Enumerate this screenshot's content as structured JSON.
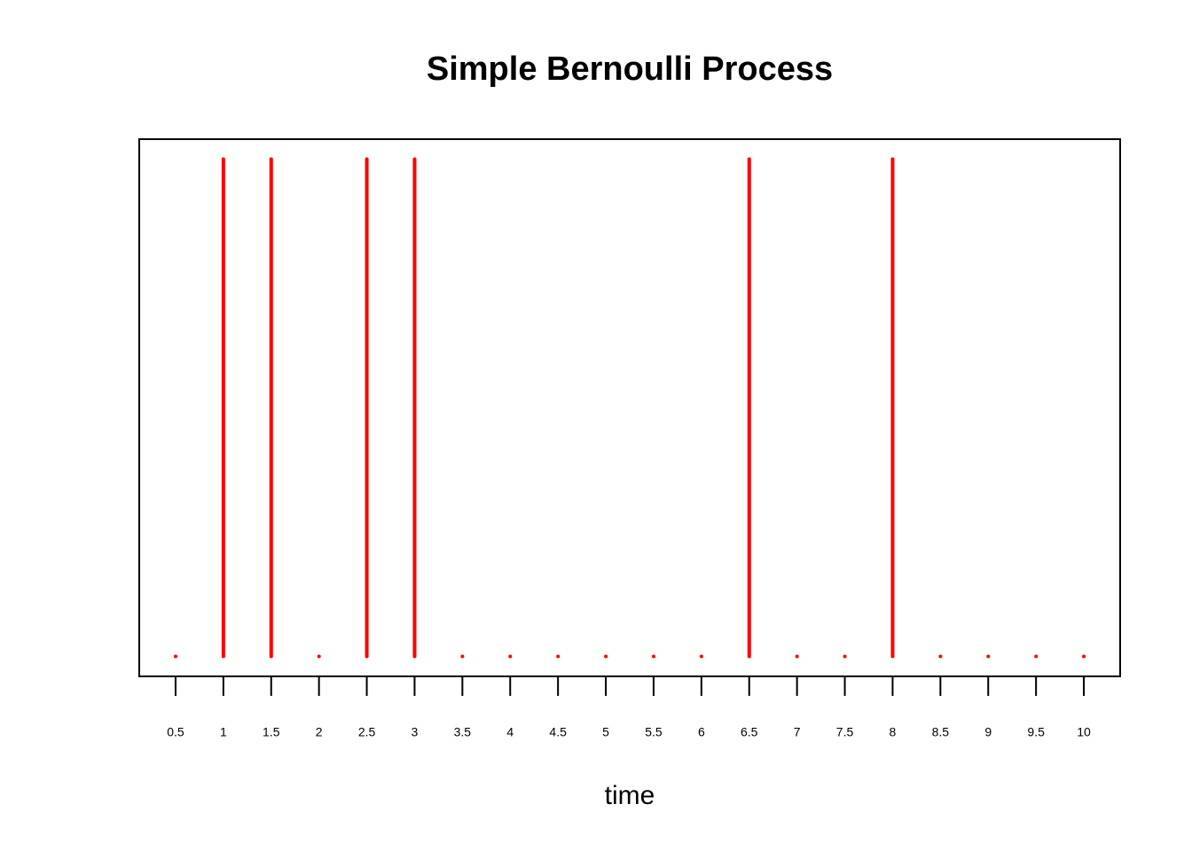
{
  "chart_data": {
    "type": "stem",
    "title": "Simple Bernoulli Process",
    "x_label": "time",
    "x": [
      0.5,
      1,
      1.5,
      2,
      2.5,
      3,
      3.5,
      4,
      4.5,
      5,
      5.5,
      6,
      6.5,
      7,
      7.5,
      8,
      8.5,
      9,
      9.5,
      10
    ],
    "values": [
      0,
      1,
      1,
      0,
      1,
      1,
      0,
      0,
      0,
      0,
      0,
      0,
      1,
      0,
      0,
      1,
      0,
      0,
      0,
      0
    ],
    "color": "#ff0000",
    "xlim": [
      0.12,
      10.38
    ],
    "ylim": [
      -0.04,
      1.04
    ],
    "xticks": [
      0.5,
      1,
      1.5,
      2,
      2.5,
      3,
      3.5,
      4,
      4.5,
      5,
      5.5,
      6,
      6.5,
      7,
      7.5,
      8,
      8.5,
      9,
      9.5,
      10
    ]
  }
}
